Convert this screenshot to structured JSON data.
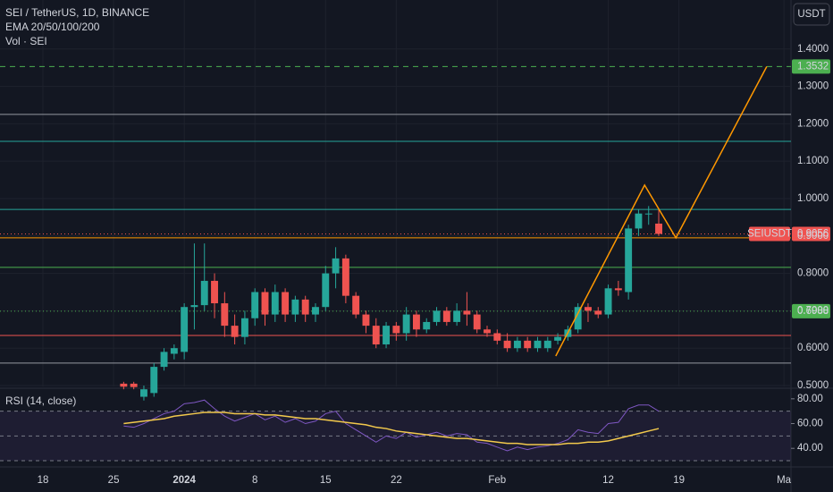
{
  "chart_data": [
    {
      "type": "candlestick",
      "title": "SEI / TetherUS, 1D, BINANCE",
      "subtitle": "EMA 20/50/100/200",
      "volume_label": "Vol · SEI",
      "unit": "USDT",
      "up_color": "#26a69a",
      "down_color": "#ef5350",
      "xlim": [
        -4.25,
        74.1
      ],
      "xticks": [
        {
          "value": 0,
          "label": "18"
        },
        {
          "value": 7,
          "label": "25"
        },
        {
          "value": 14,
          "label": "2024"
        },
        {
          "value": 21,
          "label": "8"
        },
        {
          "value": 28,
          "label": "15"
        },
        {
          "value": 35,
          "label": "22"
        },
        {
          "value": 45,
          "label": "Feb"
        },
        {
          "value": 56,
          "label": "12"
        },
        {
          "value": 63,
          "label": "19"
        },
        {
          "value": 73.4,
          "label": "Ma"
        }
      ],
      "ylim": [
        0.4976,
        1.531
      ],
      "yticks": [
        {
          "value": 0.5,
          "label": "0.5000"
        },
        {
          "value": 0.6,
          "label": "0.6000"
        },
        {
          "value": 0.7,
          "label": "0.7000"
        },
        {
          "value": 0.8,
          "label": "0.8000"
        },
        {
          "value": 0.9,
          "label": "0.9000"
        },
        {
          "value": 1.0,
          "label": "1.0000"
        },
        {
          "value": 1.1,
          "label": "1.1000"
        },
        {
          "value": 1.2,
          "label": "1.2000"
        },
        {
          "value": 1.3,
          "label": "1.3000"
        },
        {
          "value": 1.4,
          "label": "1.4000"
        }
      ],
      "x": [
        8,
        9,
        10,
        11,
        12,
        13,
        14,
        15,
        16,
        17,
        18,
        19,
        20,
        21,
        22,
        23,
        24,
        25,
        26,
        27,
        28,
        29,
        30,
        31,
        32,
        33,
        34,
        35,
        36,
        37,
        38,
        39,
        40,
        41,
        42,
        43,
        44,
        45,
        46,
        47,
        48,
        49,
        50,
        51,
        52,
        53,
        54,
        55,
        56,
        57,
        58,
        59,
        60,
        61
      ],
      "open": [
        0.505,
        0.505,
        0.47,
        0.48,
        0.55,
        0.585,
        0.59,
        0.71,
        0.715,
        0.78,
        0.72,
        0.66,
        0.63,
        0.68,
        0.75,
        0.69,
        0.75,
        0.69,
        0.73,
        0.69,
        0.71,
        0.8,
        0.84,
        0.74,
        0.69,
        0.66,
        0.61,
        0.66,
        0.64,
        0.69,
        0.65,
        0.67,
        0.7,
        0.67,
        0.7,
        0.69,
        0.65,
        0.64,
        0.62,
        0.6,
        0.62,
        0.6,
        0.6,
        0.62,
        0.63,
        0.65,
        0.71,
        0.7,
        0.69,
        0.76,
        0.75,
        0.92,
        0.96,
        0.933
      ],
      "high": [
        0.51,
        0.51,
        0.5,
        0.56,
        0.6,
        0.61,
        0.72,
        0.88,
        0.88,
        0.8,
        0.75,
        0.69,
        0.7,
        0.76,
        0.76,
        0.77,
        0.76,
        0.74,
        0.74,
        0.72,
        0.82,
        0.87,
        0.85,
        0.75,
        0.7,
        0.68,
        0.67,
        0.67,
        0.71,
        0.7,
        0.68,
        0.71,
        0.71,
        0.72,
        0.75,
        0.7,
        0.66,
        0.65,
        0.64,
        0.63,
        0.63,
        0.63,
        0.63,
        0.64,
        0.66,
        0.72,
        0.72,
        0.71,
        0.77,
        0.78,
        0.93,
        0.97,
        0.98,
        0.97
      ],
      "low": [
        0.49,
        0.49,
        0.46,
        0.47,
        0.54,
        0.57,
        0.57,
        0.65,
        0.7,
        0.68,
        0.63,
        0.61,
        0.61,
        0.66,
        0.66,
        0.67,
        0.67,
        0.67,
        0.67,
        0.67,
        0.7,
        0.76,
        0.72,
        0.68,
        0.64,
        0.6,
        0.6,
        0.62,
        0.62,
        0.63,
        0.64,
        0.66,
        0.66,
        0.66,
        0.66,
        0.64,
        0.63,
        0.61,
        0.59,
        0.59,
        0.59,
        0.59,
        0.59,
        0.61,
        0.62,
        0.64,
        0.67,
        0.68,
        0.68,
        0.74,
        0.73,
        0.9,
        0.93,
        0.9
      ],
      "close": [
        0.497,
        0.496,
        0.49,
        0.55,
        0.59,
        0.6,
        0.71,
        0.715,
        0.78,
        0.72,
        0.66,
        0.63,
        0.68,
        0.75,
        0.69,
        0.75,
        0.69,
        0.73,
        0.69,
        0.71,
        0.8,
        0.84,
        0.74,
        0.69,
        0.66,
        0.61,
        0.66,
        0.64,
        0.69,
        0.65,
        0.67,
        0.7,
        0.67,
        0.7,
        0.69,
        0.65,
        0.64,
        0.62,
        0.6,
        0.62,
        0.6,
        0.62,
        0.62,
        0.63,
        0.65,
        0.71,
        0.7,
        0.69,
        0.76,
        0.755,
        0.92,
        0.96,
        0.96,
        0.9056
      ],
      "levels": [
        {
          "value": 1.3532,
          "color": "#4caf50",
          "style": "dashed"
        },
        {
          "value": 1.225,
          "color": "#9598a1",
          "style": "solid"
        },
        {
          "value": 1.153,
          "color": "#26a69a",
          "style": "solid"
        },
        {
          "value": 0.971,
          "color": "#26a69a",
          "style": "solid"
        },
        {
          "value": 0.9056,
          "color": "#ef5350",
          "style": "dotted"
        },
        {
          "value": 0.895,
          "color": "#ff9800",
          "style": "solid"
        },
        {
          "value": 0.816,
          "color": "#4caf50",
          "style": "solid"
        },
        {
          "value": 0.6988,
          "color": "#4caf50",
          "style": "dotted"
        },
        {
          "value": 0.634,
          "color": "#ef5350",
          "style": "solid"
        },
        {
          "value": 0.56,
          "color": "#9598a1",
          "style": "solid"
        }
      ],
      "axis_labels": [
        {
          "value": 1.3532,
          "color": "#4caf50"
        },
        {
          "name": "SEIUSDT",
          "value": 0.9056,
          "color": "#ef5350"
        },
        {
          "value": 0.6988,
          "color": "#4caf50"
        }
      ],
      "drawing": {
        "color": "#ff9800",
        "x": [
          50.8,
          59.6,
          62.7,
          71.7
        ],
        "y": [
          0.579,
          1.036,
          0.895,
          1.353
        ]
      }
    },
    {
      "type": "line",
      "title": "RSI (14, close)",
      "xlim": [
        -4.25,
        74.1
      ],
      "ylim": [
        25.7,
        87.1
      ],
      "yticks": [
        {
          "value": 40,
          "label": "40.00"
        },
        {
          "value": 60,
          "label": "60.00"
        },
        {
          "value": 80,
          "label": "80.00"
        }
      ],
      "bands": [
        30,
        50,
        70
      ],
      "x": [
        8,
        9,
        10,
        11,
        12,
        13,
        14,
        15,
        16,
        17,
        18,
        19,
        20,
        21,
        22,
        23,
        24,
        25,
        26,
        27,
        28,
        29,
        30,
        31,
        32,
        33,
        34,
        35,
        36,
        37,
        38,
        39,
        40,
        41,
        42,
        43,
        44,
        45,
        46,
        47,
        48,
        49,
        50,
        51,
        52,
        53,
        54,
        55,
        56,
        57,
        58,
        59,
        60,
        61
      ],
      "series": [
        {
          "color": "#7e57c2",
          "values": [
            58,
            57,
            60,
            64,
            68,
            70,
            76,
            77,
            79,
            72,
            66,
            62,
            65,
            68,
            63,
            66,
            61,
            64,
            60,
            62,
            68,
            70,
            60,
            55,
            50,
            45,
            50,
            48,
            53,
            49,
            51,
            53,
            50,
            52,
            51,
            45,
            44,
            41,
            38,
            41,
            39,
            41,
            42,
            44,
            47,
            55,
            53,
            52,
            60,
            61,
            72,
            75,
            75,
            70
          ]
        },
        {
          "color": "#f2c94c",
          "values": [
            60,
            61,
            62,
            63,
            64,
            66,
            67,
            68,
            69,
            69,
            69,
            68,
            68,
            68,
            67,
            67,
            66,
            65,
            64,
            64,
            63,
            62,
            61,
            60,
            59,
            57,
            56,
            54,
            53,
            52,
            51,
            50,
            49,
            48,
            48,
            47,
            46,
            45,
            44,
            44,
            43,
            43,
            43,
            43,
            44,
            44,
            45,
            45,
            46,
            48,
            50,
            52,
            54,
            56
          ]
        }
      ]
    }
  ]
}
